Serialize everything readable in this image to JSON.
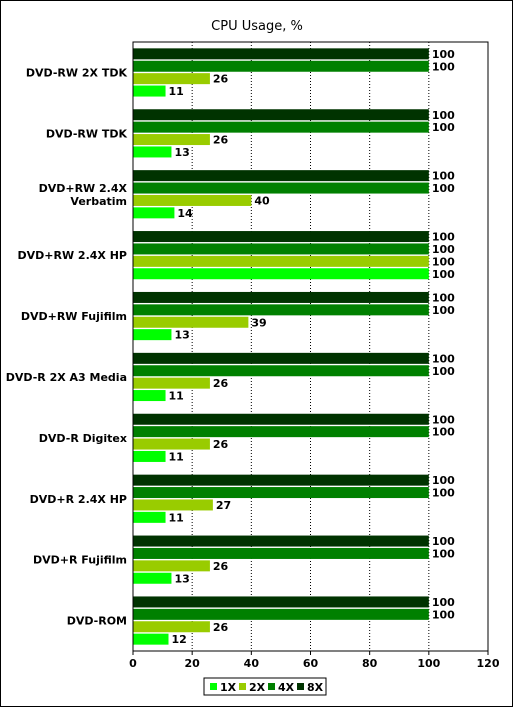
{
  "chart_data": {
    "type": "bar",
    "orientation": "horizontal",
    "title": "CPU Usage, %",
    "categories": [
      "DVD-RW 2X TDK",
      "DVD-RW TDK",
      "DVD+RW 2.4X Verbatim",
      "DVD+RW 2.4X HP",
      "DVD+RW Fujifilm",
      "DVD-R 2X A3 Media",
      "DVD-R Digitex",
      "DVD+R 2.4X HP",
      "DVD+R Fujifilm",
      "DVD-ROM"
    ],
    "category_lines": [
      [
        "DVD-RW 2X TDK"
      ],
      [
        "DVD-RW TDK"
      ],
      [
        "DVD+RW 2.4X",
        "Verbatim"
      ],
      [
        "DVD+RW 2.4X HP"
      ],
      [
        "DVD+RW Fujifilm"
      ],
      [
        "DVD-R 2X A3 Media"
      ],
      [
        "DVD-R Digitex"
      ],
      [
        "DVD+R 2.4X HP"
      ],
      [
        "DVD+R Fujifilm"
      ],
      [
        "DVD-ROM"
      ]
    ],
    "series": [
      {
        "name": "1X",
        "color": "#00ff00",
        "values": [
          11,
          13,
          14,
          100,
          13,
          11,
          11,
          11,
          13,
          12
        ]
      },
      {
        "name": "2X",
        "color": "#99cc00",
        "values": [
          26,
          26,
          40,
          100,
          39,
          26,
          26,
          27,
          26,
          26
        ]
      },
      {
        "name": "4X",
        "color": "#008000",
        "values": [
          100,
          100,
          100,
          100,
          100,
          100,
          100,
          100,
          100,
          100
        ]
      },
      {
        "name": "8X",
        "color": "#003300",
        "values": [
          100,
          100,
          100,
          100,
          100,
          100,
          100,
          100,
          100,
          100
        ]
      }
    ],
    "x_ticks": [
      0,
      20,
      40,
      60,
      80,
      100,
      120
    ],
    "xlim": [
      0,
      120
    ],
    "grid": "vertical dotted",
    "legend_position": "bottom"
  }
}
